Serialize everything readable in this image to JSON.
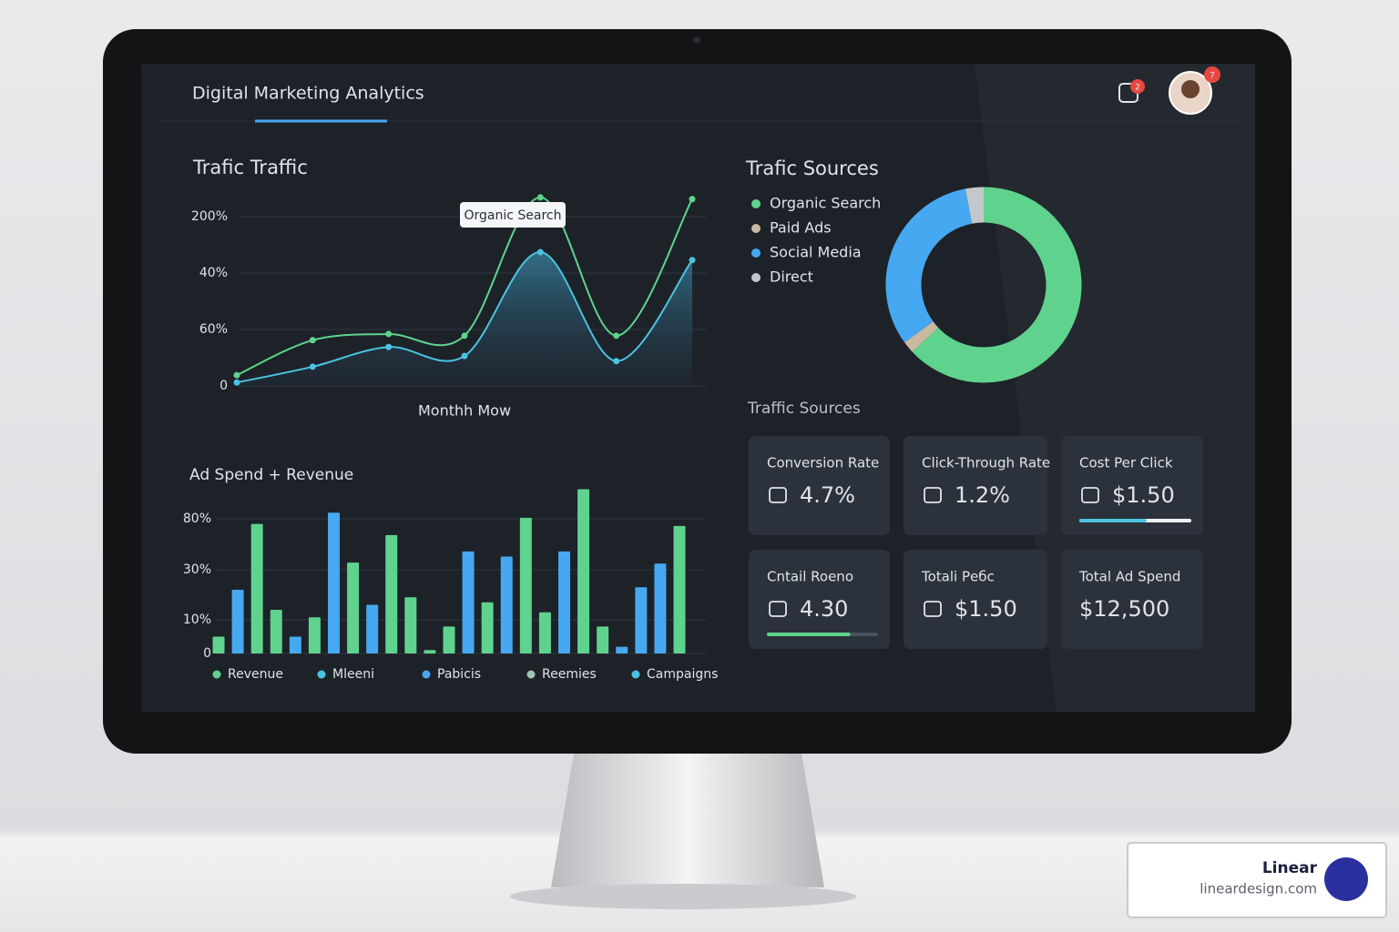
{
  "header": {
    "title": "Digital Marketing Analytics",
    "notification_badge": "2",
    "avatar_badge": "7"
  },
  "chart_data": [
    {
      "type": "line",
      "title": "Trafic Traffic",
      "x_label": "Monthh Mow",
      "annotation": "Organic Search",
      "categories": [
        null,
        null,
        null,
        null,
        null,
        null,
        null
      ],
      "series": [
        {
          "color": "#5fd38d",
          "values": [
            0.19,
            0.81,
            0.92,
            0.89,
            3.34,
            0.89,
            3.31
          ]
        },
        {
          "color": "#4bc3e0",
          "values": [
            0.06,
            0.34,
            0.69,
            0.53,
            2.37,
            0.44,
            2.23
          ]
        }
      ],
      "ylim": [
        0,
        3.5
      ],
      "yticks": [
        {
          "value": 0,
          "label": "0"
        },
        {
          "value": 1,
          "label": "60%"
        },
        {
          "value": 2,
          "label": "40%"
        },
        {
          "value": 3,
          "label": "200%"
        }
      ],
      "grid": true
    },
    {
      "type": "donut",
      "title": "Trafic Sources",
      "categories": [
        "Organic Search",
        "Paid Ads",
        "Social Media",
        "Direct"
      ],
      "values": [
        63,
        2,
        32,
        3
      ],
      "colors": [
        "#5fd38d",
        "#c8b9a2",
        "#46a8f0",
        "#c3c7cc"
      ]
    },
    {
      "type": "bar",
      "title": "Ad Spend + Revenue",
      "values": [
        5,
        22,
        75,
        14,
        5,
        11,
        86,
        37,
        16,
        64,
        19,
        1,
        8,
        48,
        17,
        43,
        81,
        13,
        48,
        109,
        8,
        2,
        23,
        36,
        73
      ],
      "colors": [
        "#5fd38d",
        "#46a8f0",
        "#5fd38d",
        "#5fd38d",
        "#46a8f0",
        "#5fd38d",
        "#46a8f0",
        "#5fd38d",
        "#46a8f0",
        "#5fd38d",
        "#5fd38d",
        "#5fd38d",
        "#5fd38d",
        "#46a8f0",
        "#5fd38d",
        "#46a8f0",
        "#5fd38d",
        "#5fd38d",
        "#46a8f0",
        "#5fd38d",
        "#5fd38d",
        "#46a8f0",
        "#46a8f0",
        "#46a8f0",
        "#5fd38d"
      ],
      "ylim": [
        0,
        110
      ],
      "yticks": [
        0,
        {
          "value": 10,
          "label": "10%"
        },
        {
          "value": 30,
          "label": "30%"
        },
        {
          "value": 80,
          "label": "80%"
        }
      ],
      "grid": true,
      "legend": [
        {
          "name": "Revenue",
          "color": "#5fd38d"
        },
        {
          "name": "Mleeni",
          "color": "#4bc3e0"
        },
        {
          "name": "Pabicis",
          "color": "#46a8f0"
        },
        {
          "name": "Reemies",
          "color": "#9fc4b0"
        },
        {
          "name": "Campaigns",
          "color": "#4bc3e0"
        }
      ]
    }
  ],
  "traffic_caption": "Traffic Sources",
  "kpis": [
    {
      "label": "Conversion Rate",
      "value": "4.7%"
    },
    {
      "label": "Click-Through Rate",
      "value": "1.2%"
    },
    {
      "label": "Cost Per Click",
      "value": "$1.50",
      "progress": 60
    },
    {
      "label": "Cntail Roeno",
      "value": "4.30",
      "progress": 75
    },
    {
      "label": "Totali Pебc",
      "value": "$1.50"
    },
    {
      "label": "Total Ad Spend",
      "value": "$12,500"
    }
  ],
  "watermark": {
    "brand": "Linear",
    "site": "lineardesign.com"
  }
}
